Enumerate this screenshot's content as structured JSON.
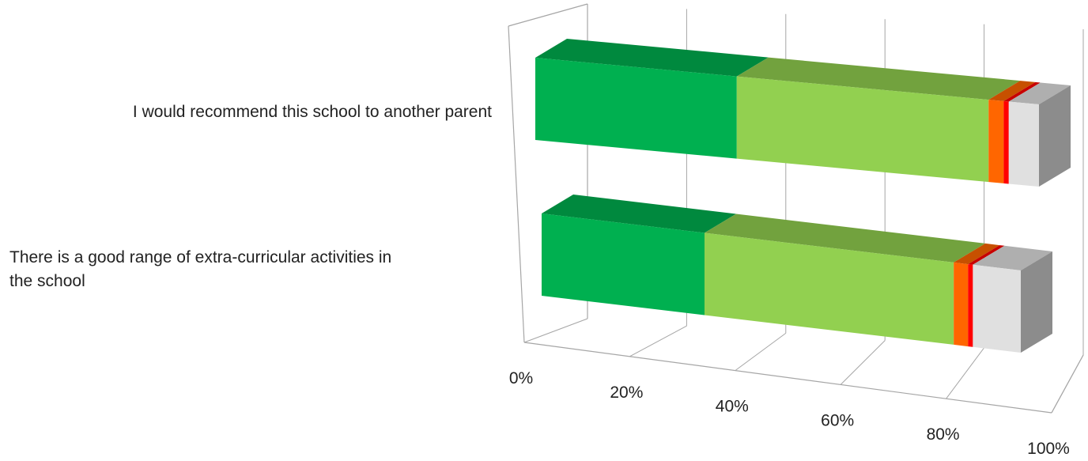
{
  "chart_data": {
    "type": "bar",
    "orientation": "horizontal",
    "stacked": "percent",
    "style": "3d",
    "categories": [
      "I would recommend this school to another parent",
      "There is a good range of extra-curricular activities in the school"
    ],
    "category_lines": [
      [
        "I would recommend this school to another parent"
      ],
      [
        "There is a good range of extra-curricular activities in",
        "the school"
      ]
    ],
    "series": [
      {
        "color": "#00B050",
        "values": [
          40,
          34
        ]
      },
      {
        "color": "#92D050",
        "values": [
          50,
          52
        ]
      },
      {
        "color": "#FF6600",
        "values": [
          3,
          3
        ]
      },
      {
        "color": "#FF0000",
        "values": [
          1,
          1
        ]
      },
      {
        "color": "#E0E0E0",
        "values": [
          6,
          10
        ]
      }
    ],
    "x_ticks": [
      "0%",
      "20%",
      "40%",
      "60%",
      "80%",
      "100%"
    ],
    "xlim": [
      0,
      100
    ],
    "grid": true,
    "legend": "none"
  }
}
